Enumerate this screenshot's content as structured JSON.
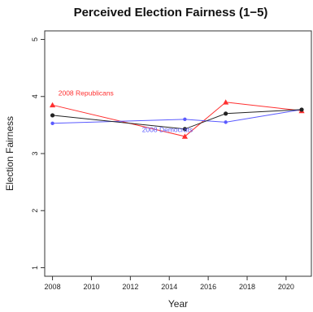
{
  "chart_data": {
    "type": "line",
    "title": "Perceived Election Fairness (1−5)",
    "xlabel": "Year",
    "ylabel": "Election Fairness",
    "xlim": [
      2007.6,
      2021.3
    ],
    "ylim": [
      0.85,
      5.15
    ],
    "x_ticks": [
      2008,
      2010,
      2012,
      2014,
      2016,
      2018,
      2020
    ],
    "y_ticks": [
      1,
      2,
      3,
      4,
      5
    ],
    "grid": false,
    "series": [
      {
        "name": "2008 Republicans",
        "color": "#ff3030",
        "marker": "triangle",
        "x": [
          2008,
          2014.8,
          2016.9,
          2020.8
        ],
        "y": [
          3.85,
          3.3,
          3.9,
          3.75
        ]
      },
      {
        "name": "2008 Democrats",
        "color": "#5a5aff",
        "marker": "dot",
        "x": [
          2008,
          2014.8,
          2016.9,
          2020.8
        ],
        "y": [
          3.53,
          3.6,
          3.55,
          3.77
        ]
      },
      {
        "name": "",
        "color": "#222222",
        "marker": "dot",
        "x": [
          2008,
          2014.8,
          2016.9,
          2020.8
        ],
        "y": [
          3.67,
          3.43,
          3.7,
          3.77
        ]
      }
    ],
    "annotations": [
      {
        "text": "2008 Republicans",
        "color": "#ff3030",
        "x": 2008.3,
        "y": 4.02
      },
      {
        "text": "2008 Democrats",
        "color": "#5a5aff",
        "x": 2012.6,
        "y": 3.38
      }
    ]
  }
}
